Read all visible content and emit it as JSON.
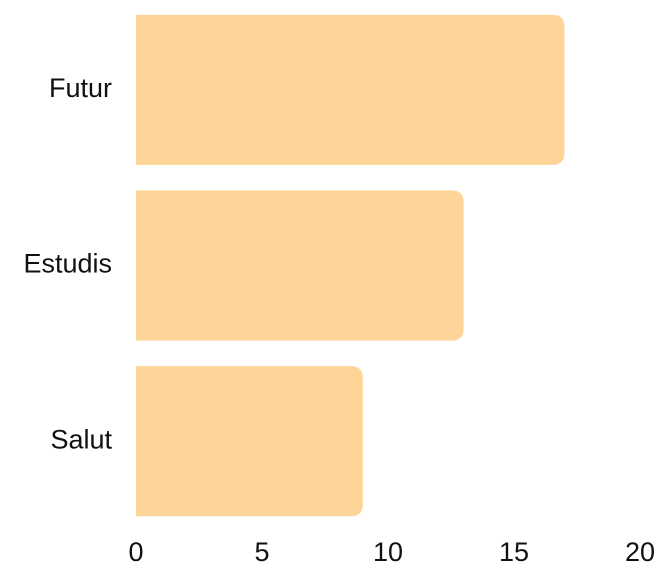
{
  "chart_data": {
    "type": "bar",
    "orientation": "horizontal",
    "categories": [
      "Futur",
      "Estudis",
      "Salut"
    ],
    "values": [
      17,
      13,
      9
    ],
    "color": "#fed598",
    "xlim": [
      0,
      20
    ],
    "xticks": [
      0,
      5,
      10,
      15,
      20
    ],
    "grid": false
  }
}
